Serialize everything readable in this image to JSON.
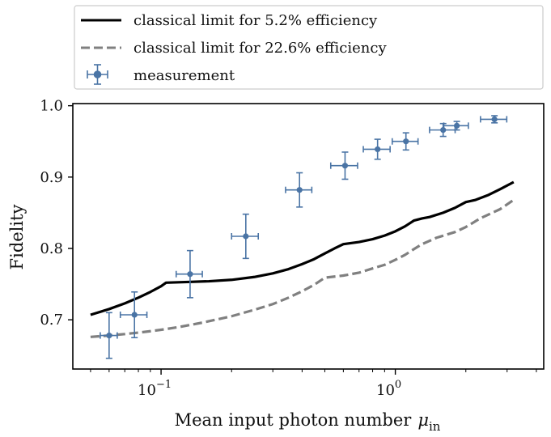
{
  "chart_data": {
    "type": "scatter",
    "xscale": "log",
    "xlim": [
      0.042,
      4.3
    ],
    "ylim": [
      0.631,
      1.003
    ],
    "xlabel": "Mean input photon number",
    "xlabel_symbol": "μ",
    "xlabel_subscript": "in",
    "ylabel": "Fidelity",
    "x_ticks": [
      {
        "value": 0.1,
        "base": "10",
        "exp": "−1"
      },
      {
        "value": 1,
        "base": "10",
        "exp": "0"
      }
    ],
    "y_ticks": [
      {
        "value": 0.7,
        "label": "0.7"
      },
      {
        "value": 0.8,
        "label": "0.8"
      },
      {
        "value": 0.9,
        "label": "0.9"
      },
      {
        "value": 1.0,
        "label": "1.0"
      }
    ],
    "grid": false,
    "legend_position": "above",
    "series": [
      {
        "name": "classical limit for 5.2% efficiency",
        "kind": "line",
        "style": "solid",
        "color": "#000000",
        "x": [
          0.05,
          0.06,
          0.07,
          0.08,
          0.09,
          0.1,
          0.105,
          0.13,
          0.16,
          0.2,
          0.25,
          0.3,
          0.35,
          0.4,
          0.45,
          0.5,
          0.55,
          0.6,
          0.7,
          0.8,
          0.9,
          1.0,
          1.1,
          1.2,
          1.3,
          1.4,
          1.6,
          1.8,
          2.0,
          2.2,
          2.5,
          2.8,
          3.2
        ],
        "y": [
          0.707,
          0.715,
          0.723,
          0.731,
          0.739,
          0.747,
          0.752,
          0.753,
          0.754,
          0.756,
          0.76,
          0.765,
          0.771,
          0.778,
          0.785,
          0.793,
          0.8,
          0.806,
          0.809,
          0.813,
          0.818,
          0.824,
          0.831,
          0.839,
          0.842,
          0.844,
          0.85,
          0.857,
          0.865,
          0.868,
          0.875,
          0.883,
          0.893
        ]
      },
      {
        "name": "classical limit for 22.6% efficiency",
        "kind": "line",
        "style": "dashed",
        "color": "#808080",
        "x": [
          0.05,
          0.06,
          0.07,
          0.08,
          0.09,
          0.1,
          0.12,
          0.15,
          0.2,
          0.25,
          0.3,
          0.35,
          0.4,
          0.45,
          0.5,
          0.6,
          0.7,
          0.8,
          0.9,
          1.0,
          1.1,
          1.2,
          1.3,
          1.5,
          1.8,
          2.0,
          2.3,
          2.8,
          3.2
        ],
        "y": [
          0.676,
          0.678,
          0.68,
          0.682,
          0.684,
          0.686,
          0.69,
          0.696,
          0.705,
          0.714,
          0.722,
          0.731,
          0.74,
          0.749,
          0.759,
          0.762,
          0.766,
          0.772,
          0.777,
          0.784,
          0.791,
          0.799,
          0.806,
          0.815,
          0.823,
          0.83,
          0.842,
          0.855,
          0.868
        ]
      },
      {
        "name": "measurement",
        "kind": "errorbar",
        "color": "#4a74a5",
        "points": [
          {
            "x": 0.06,
            "y": 0.678,
            "xerr": 0.005,
            "yerr": 0.032
          },
          {
            "x": 0.077,
            "y": 0.707,
            "xerr": 0.01,
            "yerr": 0.032
          },
          {
            "x": 0.133,
            "y": 0.764,
            "xerr": 0.017,
            "yerr": 0.033
          },
          {
            "x": 0.23,
            "y": 0.817,
            "xerr": 0.03,
            "yerr": 0.031
          },
          {
            "x": 0.39,
            "y": 0.882,
            "xerr": 0.05,
            "yerr": 0.024
          },
          {
            "x": 0.61,
            "y": 0.916,
            "xerr": 0.08,
            "yerr": 0.019
          },
          {
            "x": 0.84,
            "y": 0.939,
            "xerr": 0.11,
            "yerr": 0.014
          },
          {
            "x": 1.11,
            "y": 0.95,
            "xerr": 0.14,
            "yerr": 0.012
          },
          {
            "x": 1.6,
            "y": 0.966,
            "xerr": 0.2,
            "yerr": 0.009
          },
          {
            "x": 1.83,
            "y": 0.972,
            "xerr": 0.22,
            "yerr": 0.006
          },
          {
            "x": 2.65,
            "y": 0.981,
            "xerr": 0.34,
            "yerr": 0.005
          }
        ]
      }
    ]
  }
}
